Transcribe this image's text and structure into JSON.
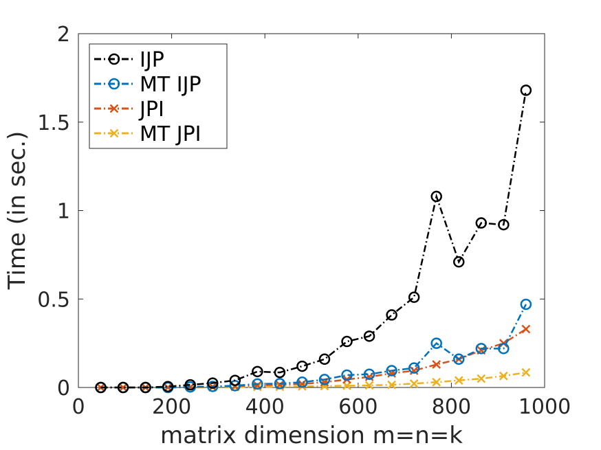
{
  "chart_data": {
    "type": "line",
    "title": "",
    "xlabel": "matrix dimension m=n=k",
    "ylabel": "Time (in sec.)",
    "xlim": [
      0,
      1000
    ],
    "ylim": [
      0,
      2
    ],
    "xticks": [
      0,
      200,
      400,
      600,
      800,
      1000
    ],
    "yticks": [
      0,
      0.5,
      1,
      1.5,
      2
    ],
    "ytick_labels": [
      "0",
      "0.5",
      "1",
      "1.5",
      "2"
    ],
    "grid": false,
    "legend_position": "top-left",
    "x": [
      48,
      96,
      144,
      192,
      240,
      288,
      336,
      384,
      432,
      480,
      528,
      576,
      624,
      672,
      720,
      768,
      816,
      864,
      912,
      960
    ],
    "series": [
      {
        "name": "IJP",
        "color": "#000000",
        "marker": "circle",
        "values": [
          0.0,
          0.0,
          0.0,
          0.005,
          0.015,
          0.025,
          0.04,
          0.09,
          0.085,
          0.12,
          0.16,
          0.26,
          0.29,
          0.41,
          0.51,
          1.08,
          0.71,
          0.93,
          0.92,
          1.68
        ]
      },
      {
        "name": "MT IJP",
        "color": "#0072BD",
        "marker": "circle",
        "values": [
          0.0,
          0.0,
          0.0,
          0.0,
          0.003,
          0.006,
          0.01,
          0.02,
          0.022,
          0.03,
          0.045,
          0.07,
          0.075,
          0.095,
          0.11,
          0.25,
          0.16,
          0.22,
          0.22,
          0.47
        ]
      },
      {
        "name": "JPI",
        "color": "#D95319",
        "marker": "x",
        "values": [
          0.0,
          0.0,
          0.0,
          0.0,
          0.002,
          0.004,
          0.007,
          0.012,
          0.015,
          0.02,
          0.03,
          0.045,
          0.06,
          0.08,
          0.095,
          0.13,
          0.16,
          0.21,
          0.25,
          0.33
        ]
      },
      {
        "name": "MT JPI",
        "color": "#EDB120",
        "marker": "x",
        "values": [
          0.0,
          0.0,
          0.0,
          0.0,
          0.0,
          0.001,
          0.002,
          0.003,
          0.004,
          0.006,
          0.008,
          0.01,
          0.012,
          0.015,
          0.022,
          0.03,
          0.04,
          0.05,
          0.065,
          0.085
        ]
      }
    ]
  }
}
